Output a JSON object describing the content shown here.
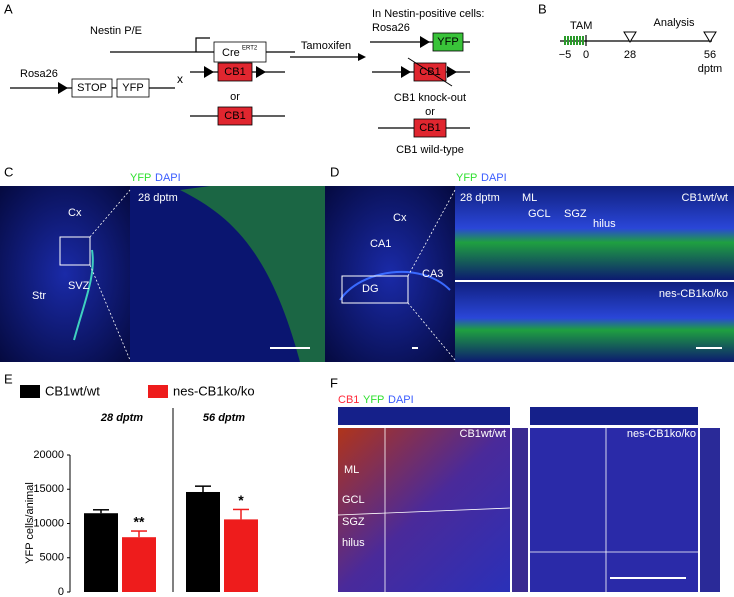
{
  "panels": {
    "A": {
      "label": "A",
      "promoter": "Nestin P/E",
      "cre": "Cre",
      "cre_sup": "ERT2",
      "cross": "x",
      "rosa": "Rosa26",
      "stop": "STOP",
      "yfp": "YFP",
      "cb1_flox": "CB1",
      "or": "or",
      "cb1_wt": "CB1",
      "arrow": "Tamoxifen",
      "result_title": "In Nestin-positive cells:",
      "result_rosa": "Rosa26",
      "result_yfp": "YFP",
      "result_cb1_ko": "CB1",
      "ko_label": "CB1 knock-out",
      "or2": "or",
      "result_cb1_wt": "CB1",
      "wt_label": "CB1 wild-type"
    },
    "B": {
      "label": "B",
      "tam": "TAM",
      "start": "−5",
      "zero": "0",
      "mid": "28",
      "analysis": "Analysis",
      "end": "56",
      "unit": "dptm"
    },
    "C": {
      "label": "C",
      "stain1": "YFP",
      "stain2": "DAPI",
      "cx": "Cx",
      "str": "Str",
      "svz": "SVZ",
      "time": "28 dptm"
    },
    "D": {
      "label": "D",
      "stain1": "YFP",
      "stain2": "DAPI",
      "cx": "Cx",
      "ca1": "CA1",
      "ca3": "CA3",
      "dg": "DG",
      "time": "28 dptm",
      "ml": "ML",
      "gcl": "GCL",
      "sgz": "SGZ",
      "hilus": "hilus",
      "wt": "CB1wt/wt",
      "ko": "nes-CB1ko/ko"
    },
    "E": {
      "label": "E"
    },
    "F": {
      "label": "F",
      "stain1": "CB1",
      "stain2": "YFP",
      "stain3": "DAPI",
      "wt": "CB1wt/wt",
      "ko": "nes-CB1ko/ko",
      "ml": "ML",
      "gcl": "GCL",
      "sgz": "SGZ",
      "hilus": "hilus"
    }
  },
  "chart_data": {
    "type": "bar",
    "ylabel": "YFP cells/animal",
    "categories": [
      "28 dptm",
      "56 dptm"
    ],
    "series": [
      {
        "name": "CB1wt/wt",
        "color": "#000000",
        "values": [
          11500,
          14600
        ],
        "errors": [
          500,
          850
        ],
        "marks": [
          null,
          null
        ]
      },
      {
        "name": "nes-CB1ko/ko",
        "color": "#ee1c1c",
        "values": [
          8000,
          10600
        ],
        "errors": [
          900,
          1450
        ],
        "marks": [
          "**",
          "*"
        ]
      }
    ],
    "ylim": [
      0,
      20000
    ],
    "yticks": [
      0,
      5000,
      10000,
      15000,
      20000
    ]
  }
}
